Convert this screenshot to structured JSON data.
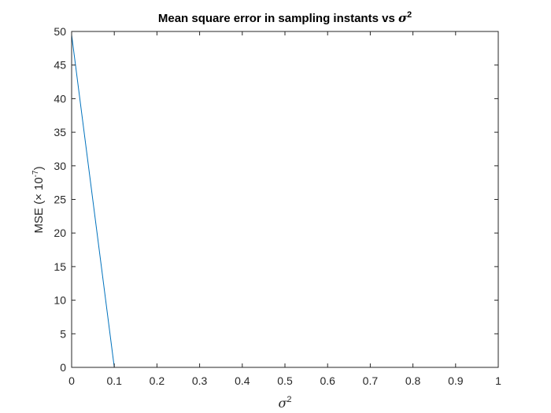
{
  "chart_data": {
    "type": "line",
    "title": {
      "text": "Mean square error in sampling instants vs ",
      "symbol": "σ",
      "superscript": "2"
    },
    "xlabel": {
      "symbol": "σ",
      "superscript": "2"
    },
    "ylabel": {
      "prefix": "MSE (× 10",
      "exponent": "-7",
      "suffix": ")"
    },
    "xlim": [
      0,
      1
    ],
    "ylim": [
      0,
      50
    ],
    "xticks": [
      0,
      0.1,
      0.2,
      0.3,
      0.4,
      0.5,
      0.6,
      0.7,
      0.8,
      0.9,
      1
    ],
    "yticks": [
      0,
      5,
      10,
      15,
      20,
      25,
      30,
      35,
      40,
      45,
      50
    ],
    "xtick_labels": [
      "0",
      "0.1",
      "0.2",
      "0.3",
      "0.4",
      "0.5",
      "0.6",
      "0.7",
      "0.8",
      "0.9",
      "1"
    ],
    "ytick_labels": [
      "0",
      "5",
      "10",
      "15",
      "20",
      "25",
      "30",
      "35",
      "40",
      "45",
      "50"
    ],
    "grid": false,
    "series": [
      {
        "color": "#0072bd",
        "x": [
          0,
          0.1,
          0.2,
          0.3,
          0.4,
          0.5,
          0.6,
          0.7,
          0.8,
          0.9,
          1
        ],
        "y": [
          49.5,
          0,
          0,
          0,
          0,
          0,
          0,
          0,
          0,
          0,
          0
        ]
      }
    ]
  }
}
